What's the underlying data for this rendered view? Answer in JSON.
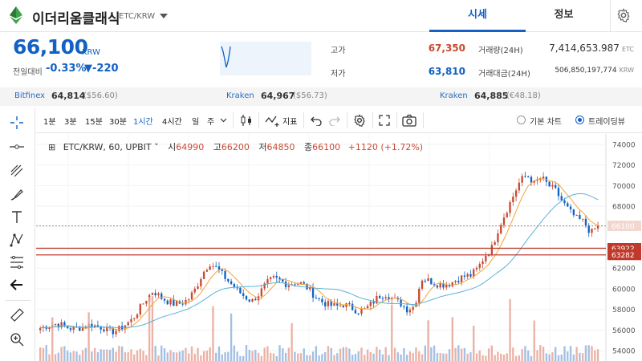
{
  "header": {
    "coin_name": "이더리움클래식",
    "pair": "ETC/KRW",
    "tab_price": "시세",
    "tab_info": "정보"
  },
  "summary": {
    "price": "66,100",
    "price_unit": "KRW",
    "change_label": "전일대비",
    "change_rate": "-0.33%",
    "change_abs": "▼-220",
    "high_label": "고가",
    "high_value": "67,350",
    "low_label": "저가",
    "low_value": "63,810",
    "volume_label": "거래량(24H)",
    "volume_value": "7,414,653.987",
    "volume_unit": "ETC",
    "amount_label": "거래대금(24H)",
    "amount_value": "506,850,197,774",
    "amount_unit": "KRW"
  },
  "exchanges": [
    {
      "name": "Bitfinex",
      "price": "64,814",
      "foreign": "($56.60)"
    },
    {
      "name": "Kraken",
      "price": "64,967",
      "foreign": "($56.73)"
    },
    {
      "name": "Kraken",
      "price": "64,885",
      "foreign": "(€48.18)"
    }
  ],
  "toolbar": {
    "intervals": [
      "1분",
      "3분",
      "15분",
      "30분",
      "1시간",
      "4시간",
      "일",
      "주"
    ],
    "active_interval": "1시간",
    "indicator_label": "지표",
    "basic_chart": "기본 차트",
    "trading_view": "트레이딩뷰"
  },
  "legend": {
    "symbol": "ETC/KRW, 60, UPBIT",
    "open_label": "시",
    "open": "64990",
    "high_label": "고",
    "high": "66200",
    "low_label": "저",
    "low": "64850",
    "close_label": "종",
    "close": "66100",
    "change": "+1120 (+1.72%)"
  },
  "price_axis": {
    "ticks": [
      "74000",
      "72000",
      "70000",
      "68000",
      "66000",
      "64000",
      "62000",
      "60000",
      "58000",
      "56000",
      "54000"
    ],
    "last_price_tag": "66100",
    "hline_tags": [
      "63922",
      "63282"
    ]
  },
  "colors": {
    "up": "#c84a31",
    "down": "#1261c4",
    "accent": "#1261c4",
    "ma_fast": "#f3a33a",
    "ma_slow": "#5ab4d9",
    "hline": "#c0392b"
  },
  "chart_data": {
    "type": "candlestick",
    "ylim": [
      53000,
      75000
    ],
    "approx_closes": [
      56200,
      56400,
      56600,
      56500,
      56200,
      56100,
      56300,
      56500,
      56400,
      56200,
      55800,
      56000,
      56500,
      57000,
      58000,
      59000,
      59800,
      59200,
      58800,
      58500,
      58600,
      59000,
      60000,
      61500,
      62500,
      62000,
      61200,
      60500,
      59800,
      59200,
      58800,
      59500,
      60500,
      61000,
      60800,
      60400,
      60600,
      60500,
      60000,
      59200,
      58700,
      58400,
      58300,
      58500,
      58200,
      57800,
      58000,
      58600,
      59300,
      59500,
      59000,
      58600,
      58000,
      58300,
      61000,
      60800,
      60500,
      60400,
      60500,
      60900,
      61200,
      61300,
      62000,
      63200,
      64000,
      66000,
      67500,
      69000,
      70500,
      71000,
      70200,
      70800,
      70000,
      69500,
      68400,
      67500,
      66800,
      66500,
      65400,
      66100
    ],
    "horizontal_lines": [
      63922,
      63282
    ]
  }
}
